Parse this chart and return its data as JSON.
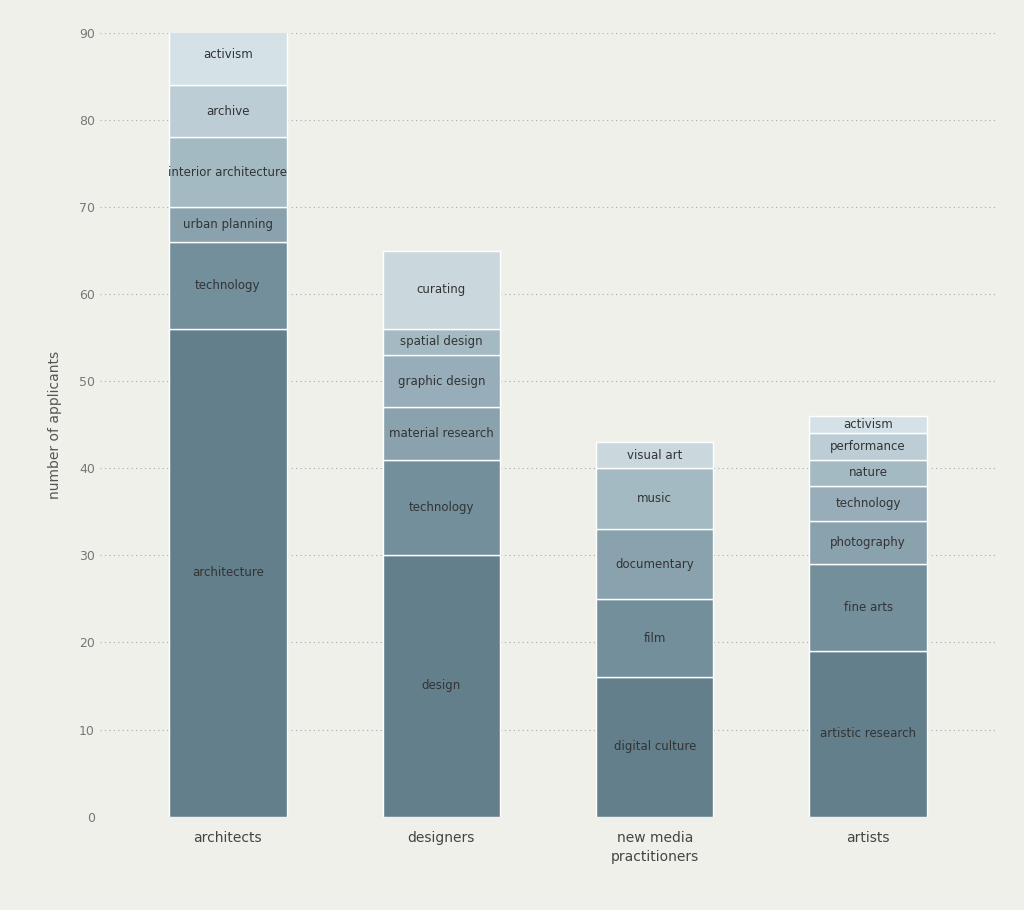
{
  "categories": [
    "architects",
    "designers",
    "new media\npractitioners",
    "artists"
  ],
  "stacks": {
    "architects": [
      {
        "label": "architecture",
        "value": 56,
        "color": "#637f8c"
      },
      {
        "label": "technology",
        "value": 10,
        "color": "#738f9c"
      },
      {
        "label": "urban planning",
        "value": 4,
        "color": "#8aa2ae"
      },
      {
        "label": "interior architecture",
        "value": 8,
        "color": "#a4bac3"
      },
      {
        "label": "archive",
        "value": 6,
        "color": "#bccdd6"
      },
      {
        "label": "activism",
        "value": 7,
        "color": "#d4e2e8"
      }
    ],
    "designers": [
      {
        "label": "design",
        "value": 30,
        "color": "#637f8c"
      },
      {
        "label": "technology",
        "value": 11,
        "color": "#738f9c"
      },
      {
        "label": "material research",
        "value": 6,
        "color": "#8aa2ae"
      },
      {
        "label": "graphic design",
        "value": 6,
        "color": "#97adb9"
      },
      {
        "label": "spatial design",
        "value": 3,
        "color": "#a4bac3"
      },
      {
        "label": "curating",
        "value": 9,
        "color": "#cad8de"
      }
    ],
    "new media\npractitioners": [
      {
        "label": "digital culture",
        "value": 16,
        "color": "#637f8c"
      },
      {
        "label": "film",
        "value": 9,
        "color": "#738f9c"
      },
      {
        "label": "documentary",
        "value": 8,
        "color": "#8aa2ae"
      },
      {
        "label": "music",
        "value": 7,
        "color": "#a4bac3"
      },
      {
        "label": "visual art",
        "value": 3,
        "color": "#cad8de"
      }
    ],
    "artists": [
      {
        "label": "artistic research",
        "value": 19,
        "color": "#637f8c"
      },
      {
        "label": "fine arts",
        "value": 10,
        "color": "#738f9c"
      },
      {
        "label": "photography",
        "value": 5,
        "color": "#8aa2ae"
      },
      {
        "label": "technology",
        "value": 4,
        "color": "#97adb9"
      },
      {
        "label": "nature",
        "value": 3,
        "color": "#a4bac3"
      },
      {
        "label": "performance",
        "value": 3,
        "color": "#bccdd6"
      },
      {
        "label": "activism",
        "value": 2,
        "color": "#d4e2e8"
      }
    ]
  },
  "ylabel": "number of applicants",
  "ylim": [
    0,
    90
  ],
  "yticks": [
    0,
    10,
    20,
    30,
    40,
    50,
    60,
    70,
    80,
    90
  ],
  "figsize": [
    10.24,
    9.1
  ],
  "dpi": 100,
  "bg_color": "#f0f0eb",
  "bar_width": 0.55,
  "x_positions": [
    0,
    1,
    2,
    3
  ],
  "label_fontsize": 8.5,
  "tick_fontsize": 10,
  "ylabel_fontsize": 10
}
